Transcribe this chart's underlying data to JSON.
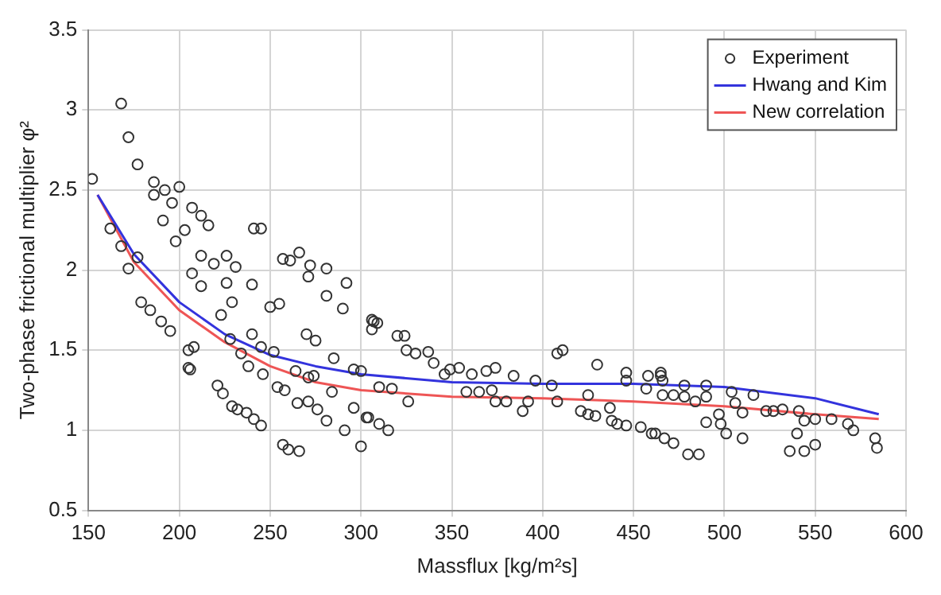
{
  "chart_data": {
    "type": "scatter",
    "xlabel": "Massflux [kg/m²s]",
    "ylabel": "Two-phase frictional multiplier φ²",
    "xlim": [
      150,
      600
    ],
    "xticks": [
      150,
      200,
      250,
      300,
      350,
      400,
      450,
      500,
      550,
      600
    ],
    "ylim": [
      0.5,
      3.5
    ],
    "yticks": [
      0.5,
      1,
      1.5,
      2,
      2.5,
      3,
      3.5
    ],
    "grid": true,
    "legend": "top right",
    "series": [
      {
        "name": "Experiment",
        "type": "scatter",
        "marker": "circle",
        "color": "#333333",
        "x": [
          152,
          168,
          172,
          177,
          186,
          186,
          192,
          196,
          200,
          162,
          168,
          177,
          172,
          191,
          198,
          203,
          207,
          212,
          216,
          207,
          212,
          212,
          219,
          226,
          231,
          226,
          229,
          240,
          179,
          184,
          190,
          195,
          205,
          208,
          206,
          223,
          228,
          234,
          240,
          238,
          245,
          246,
          252,
          241,
          245,
          257,
          261,
          266,
          272,
          271,
          281,
          292,
          281,
          290,
          250,
          255,
          270,
          275,
          285,
          264,
          271,
          274,
          284,
          296,
          300,
          306,
          309,
          254,
          258,
          265,
          271,
          276,
          281,
          291,
          300,
          296,
          303,
          310,
          310,
          221,
          224,
          229,
          232,
          237,
          241,
          245,
          257,
          260,
          266,
          205,
          307,
          306,
          320,
          324,
          325,
          330,
          337,
          340,
          346,
          349,
          354,
          361,
          369,
          374,
          384,
          396,
          405,
          408,
          411,
          430,
          446,
          446,
          358,
          365,
          372,
          374,
          380,
          389,
          392,
          408,
          425,
          421,
          425,
          429,
          437,
          438,
          441,
          446,
          460,
          457,
          317,
          326,
          304,
          315,
          465,
          465,
          466,
          458,
          466,
          472,
          478,
          478,
          484,
          490,
          490,
          490,
          497,
          498,
          504,
          506,
          510,
          516,
          523,
          527,
          532,
          541,
          544,
          550,
          559,
          568,
          571,
          583,
          584,
          462,
          467,
          472,
          480,
          486,
          501,
          510,
          536,
          544,
          550,
          540,
          454
        ],
        "values": [
          2.57,
          3.04,
          2.83,
          2.66,
          2.55,
          2.47,
          2.5,
          2.42,
          2.52,
          2.26,
          2.15,
          2.08,
          2.01,
          2.31,
          2.18,
          2.25,
          2.39,
          2.34,
          2.28,
          1.98,
          1.9,
          2.09,
          2.04,
          2.09,
          2.02,
          1.92,
          1.8,
          1.91,
          1.8,
          1.75,
          1.68,
          1.62,
          1.5,
          1.52,
          1.38,
          1.72,
          1.57,
          1.48,
          1.6,
          1.4,
          1.52,
          1.35,
          1.49,
          2.26,
          2.26,
          2.07,
          2.06,
          2.11,
          2.03,
          1.96,
          2.01,
          1.92,
          1.84,
          1.76,
          1.77,
          1.79,
          1.6,
          1.56,
          1.45,
          1.37,
          1.33,
          1.34,
          1.24,
          1.38,
          1.37,
          1.69,
          1.67,
          1.27,
          1.25,
          1.17,
          1.18,
          1.13,
          1.06,
          1.0,
          0.9,
          1.14,
          1.08,
          1.04,
          1.27,
          1.28,
          1.23,
          1.15,
          1.13,
          1.11,
          1.07,
          1.03,
          0.91,
          0.88,
          0.87,
          1.39,
          1.68,
          1.63,
          1.59,
          1.59,
          1.5,
          1.48,
          1.49,
          1.42,
          1.35,
          1.38,
          1.39,
          1.35,
          1.37,
          1.39,
          1.34,
          1.31,
          1.28,
          1.48,
          1.5,
          1.41,
          1.36,
          1.31,
          1.24,
          1.24,
          1.25,
          1.18,
          1.18,
          1.12,
          1.18,
          1.18,
          1.22,
          1.12,
          1.1,
          1.09,
          1.14,
          1.06,
          1.04,
          1.03,
          0.98,
          1.26,
          1.26,
          1.18,
          1.08,
          1.0,
          1.36,
          1.34,
          1.31,
          1.34,
          1.22,
          1.22,
          1.28,
          1.21,
          1.18,
          1.28,
          1.21,
          1.05,
          1.1,
          1.04,
          1.24,
          1.17,
          1.11,
          1.22,
          1.12,
          1.12,
          1.13,
          1.12,
          1.06,
          1.07,
          1.07,
          1.04,
          1.0,
          0.95,
          0.89,
          0.98,
          0.95,
          0.92,
          0.85,
          0.85,
          0.98,
          0.95,
          0.87,
          0.87,
          0.91,
          0.98,
          1.02
        ]
      },
      {
        "name": "Hwang and Kim",
        "type": "line",
        "marker": "none",
        "color": "#3333dd",
        "x": [
          155,
          175,
          200,
          225,
          250,
          275,
          300,
          350,
          400,
          450,
          500,
          550,
          585
        ],
        "values": [
          2.47,
          2.1,
          1.8,
          1.6,
          1.47,
          1.4,
          1.35,
          1.3,
          1.29,
          1.29,
          1.27,
          1.2,
          1.1
        ]
      },
      {
        "name": "New correlation",
        "type": "line",
        "marker": "none",
        "color": "#ee5555",
        "x": [
          155,
          175,
          200,
          225,
          250,
          275,
          300,
          350,
          400,
          450,
          500,
          550,
          585
        ],
        "values": [
          2.47,
          2.05,
          1.75,
          1.55,
          1.4,
          1.3,
          1.25,
          1.21,
          1.2,
          1.18,
          1.15,
          1.1,
          1.07
        ]
      }
    ]
  }
}
